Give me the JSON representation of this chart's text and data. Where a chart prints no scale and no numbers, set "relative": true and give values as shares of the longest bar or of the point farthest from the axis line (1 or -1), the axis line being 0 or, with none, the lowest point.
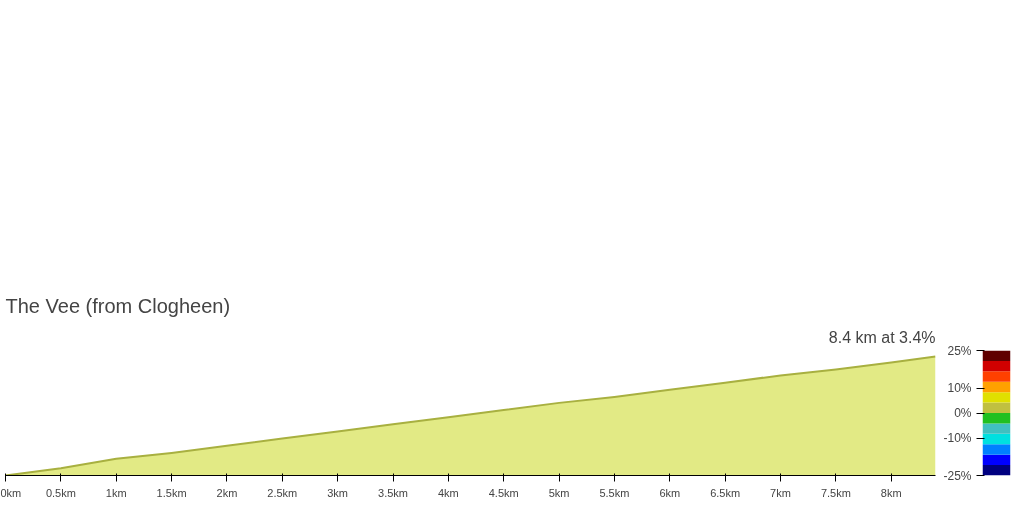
{
  "chart_data": {
    "type": "area",
    "title": "The Vee (from Clogheen)",
    "subtitle": "8.4 km at 3.4%",
    "relative": true,
    "x": [
      0,
      0.5,
      1,
      1.5,
      2,
      2.5,
      3,
      3.5,
      4,
      4.5,
      5,
      5.5,
      6,
      6.5,
      7,
      7.5,
      8,
      8.4
    ],
    "series": [
      {
        "color": "#dfe878",
        "values": [
          0,
          0.06,
          0.14,
          0.19,
          0.25,
          0.31,
          0.37,
          0.43,
          0.49,
          0.55,
          0.61,
          0.66,
          0.72,
          0.78,
          0.84,
          0.89,
          0.95,
          1
        ]
      }
    ],
    "xlim": [
      0,
      8.4
    ],
    "xticks": [
      {
        "value": 0,
        "label": "0km"
      },
      {
        "value": 0.5,
        "label": "0.5km"
      },
      {
        "value": 1,
        "label": "1km"
      },
      {
        "value": 1.5,
        "label": "1.5km"
      },
      {
        "value": 2,
        "label": "2km"
      },
      {
        "value": 2.5,
        "label": "2.5km"
      },
      {
        "value": 3,
        "label": "3km"
      },
      {
        "value": 3.5,
        "label": "3.5km"
      },
      {
        "value": 4,
        "label": "4km"
      },
      {
        "value": 4.5,
        "label": "4.5km"
      },
      {
        "value": 5,
        "label": "5km"
      },
      {
        "value": 5.5,
        "label": "5.5km"
      },
      {
        "value": 6,
        "label": "6km"
      },
      {
        "value": 6.5,
        "label": "6.5km"
      },
      {
        "value": 7,
        "label": "7km"
      },
      {
        "value": 7.5,
        "label": "7.5km"
      },
      {
        "value": 8,
        "label": "8km"
      }
    ],
    "clim": [
      -25,
      25
    ],
    "cticks": [
      {
        "value": 25,
        "label": "25%"
      },
      {
        "value": 10,
        "label": "10%"
      },
      {
        "value": 0,
        "label": "0%"
      },
      {
        "value": -10,
        "label": "-10%"
      },
      {
        "value": -25,
        "label": "-25%"
      }
    ],
    "grid": false
  }
}
